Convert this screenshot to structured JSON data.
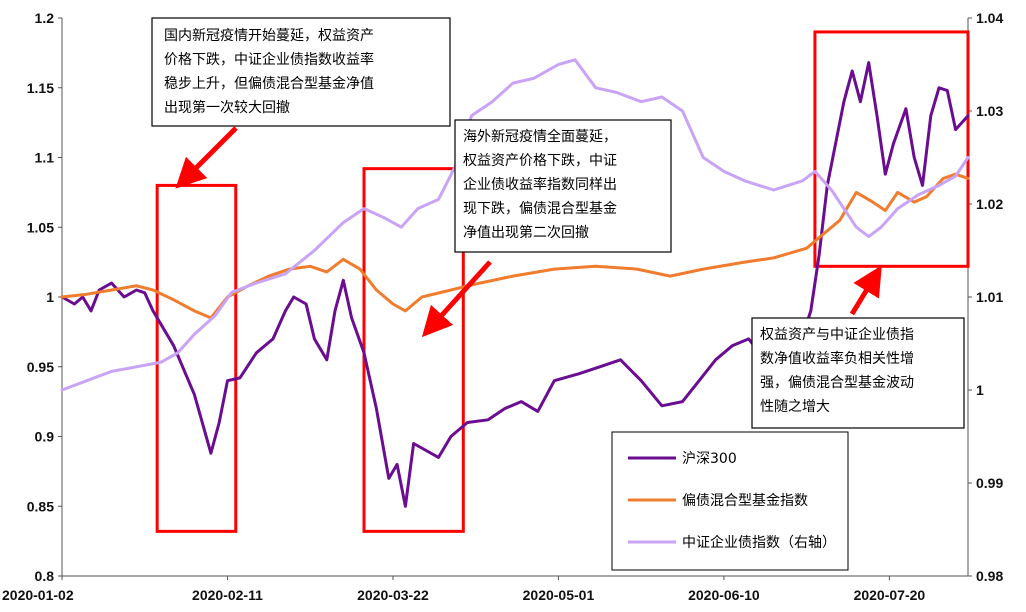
{
  "chart_data": {
    "type": "line",
    "title": "",
    "xlabel": "",
    "ylabel": "",
    "x_ticks": [
      "2020-01-02",
      "2020-02-11",
      "2020-03-22",
      "2020-05-01",
      "2020-06-10",
      "2020-07-20"
    ],
    "x_range": [
      "2020-01-02",
      "2020-08-08"
    ],
    "ylim_left": [
      0.8,
      1.2
    ],
    "ylim_right": [
      0.98,
      1.04
    ],
    "y_ticks_left": [
      "0.8",
      "0.85",
      "0.9",
      "0.95",
      "1",
      "1.05",
      "1.1",
      "1.15",
      "1.2"
    ],
    "y_ticks_right": [
      "0.98",
      "0.99",
      "1",
      "1.01",
      "1.02",
      "1.03",
      "1.04"
    ],
    "grid": false,
    "legend_position": "bottom-right",
    "series": [
      {
        "name": "沪深300",
        "axis": "left",
        "color": "#6a0d91",
        "points": [
          [
            "2020-01-02",
            1.0
          ],
          [
            "2020-01-05",
            0.995
          ],
          [
            "2020-01-07",
            1.0
          ],
          [
            "2020-01-09",
            0.99
          ],
          [
            "2020-01-11",
            1.005
          ],
          [
            "2020-01-14",
            1.01
          ],
          [
            "2020-01-17",
            1.0
          ],
          [
            "2020-01-20",
            1.005
          ],
          [
            "2020-01-22",
            1.003
          ],
          [
            "2020-01-24",
            0.99
          ],
          [
            "2020-01-29",
            0.965
          ],
          [
            "2020-02-03",
            0.93
          ],
          [
            "2020-02-07",
            0.888
          ],
          [
            "2020-02-09",
            0.91
          ],
          [
            "2020-02-11",
            0.94
          ],
          [
            "2020-02-14",
            0.942
          ],
          [
            "2020-02-18",
            0.96
          ],
          [
            "2020-02-22",
            0.97
          ],
          [
            "2020-02-25",
            0.99
          ],
          [
            "2020-02-27",
            1.0
          ],
          [
            "2020-03-01",
            0.995
          ],
          [
            "2020-03-03",
            0.97
          ],
          [
            "2020-03-06",
            0.955
          ],
          [
            "2020-03-08",
            0.99
          ],
          [
            "2020-03-10",
            1.012
          ],
          [
            "2020-03-12",
            0.985
          ],
          [
            "2020-03-15",
            0.96
          ],
          [
            "2020-03-18",
            0.92
          ],
          [
            "2020-03-21",
            0.87
          ],
          [
            "2020-03-23",
            0.88
          ],
          [
            "2020-03-25",
            0.85
          ],
          [
            "2020-03-27",
            0.895
          ],
          [
            "2020-03-30",
            0.89
          ],
          [
            "2020-04-02",
            0.885
          ],
          [
            "2020-04-05",
            0.9
          ],
          [
            "2020-04-09",
            0.91
          ],
          [
            "2020-04-14",
            0.912
          ],
          [
            "2020-04-18",
            0.92
          ],
          [
            "2020-04-22",
            0.925
          ],
          [
            "2020-04-26",
            0.918
          ],
          [
            "2020-04-30",
            0.94
          ],
          [
            "2020-05-06",
            0.945
          ],
          [
            "2020-05-11",
            0.95
          ],
          [
            "2020-05-16",
            0.955
          ],
          [
            "2020-05-21",
            0.94
          ],
          [
            "2020-05-26",
            0.922
          ],
          [
            "2020-05-31",
            0.925
          ],
          [
            "2020-06-04",
            0.94
          ],
          [
            "2020-06-08",
            0.955
          ],
          [
            "2020-06-12",
            0.965
          ],
          [
            "2020-06-16",
            0.97
          ],
          [
            "2020-06-20",
            0.955
          ],
          [
            "2020-06-25",
            0.965
          ],
          [
            "2020-06-29",
            0.972
          ],
          [
            "2020-07-01",
            0.99
          ],
          [
            "2020-07-03",
            1.03
          ],
          [
            "2020-07-05",
            1.08
          ],
          [
            "2020-07-07",
            1.11
          ],
          [
            "2020-07-09",
            1.14
          ],
          [
            "2020-07-11",
            1.162
          ],
          [
            "2020-07-13",
            1.14
          ],
          [
            "2020-07-15",
            1.168
          ],
          [
            "2020-07-17",
            1.13
          ],
          [
            "2020-07-19",
            1.088
          ],
          [
            "2020-07-21",
            1.11
          ],
          [
            "2020-07-24",
            1.135
          ],
          [
            "2020-07-26",
            1.1
          ],
          [
            "2020-07-28",
            1.08
          ],
          [
            "2020-07-30",
            1.13
          ],
          [
            "2020-08-01",
            1.15
          ],
          [
            "2020-08-03",
            1.148
          ],
          [
            "2020-08-05",
            1.12
          ],
          [
            "2020-08-08",
            1.13
          ]
        ]
      },
      {
        "name": "偏债混合型基金指数",
        "axis": "left",
        "color": "#f07c2e",
        "points": [
          [
            "2020-01-02",
            1.0
          ],
          [
            "2020-01-08",
            1.002
          ],
          [
            "2020-01-14",
            1.005
          ],
          [
            "2020-01-20",
            1.008
          ],
          [
            "2020-01-24",
            1.005
          ],
          [
            "2020-01-29",
            0.998
          ],
          [
            "2020-02-03",
            0.99
          ],
          [
            "2020-02-07",
            0.985
          ],
          [
            "2020-02-11",
            1.0
          ],
          [
            "2020-02-16",
            1.008
          ],
          [
            "2020-02-21",
            1.015
          ],
          [
            "2020-02-26",
            1.02
          ],
          [
            "2020-03-02",
            1.022
          ],
          [
            "2020-03-06",
            1.018
          ],
          [
            "2020-03-10",
            1.027
          ],
          [
            "2020-03-14",
            1.02
          ],
          [
            "2020-03-18",
            1.005
          ],
          [
            "2020-03-22",
            0.995
          ],
          [
            "2020-03-25",
            0.99
          ],
          [
            "2020-03-29",
            1.0
          ],
          [
            "2020-04-05",
            1.005
          ],
          [
            "2020-04-12",
            1.01
          ],
          [
            "2020-04-20",
            1.015
          ],
          [
            "2020-04-30",
            1.02
          ],
          [
            "2020-05-10",
            1.022
          ],
          [
            "2020-05-20",
            1.02
          ],
          [
            "2020-05-28",
            1.015
          ],
          [
            "2020-06-05",
            1.02
          ],
          [
            "2020-06-15",
            1.025
          ],
          [
            "2020-06-22",
            1.028
          ],
          [
            "2020-06-30",
            1.035
          ],
          [
            "2020-07-04",
            1.045
          ],
          [
            "2020-07-08",
            1.055
          ],
          [
            "2020-07-12",
            1.075
          ],
          [
            "2020-07-16",
            1.068
          ],
          [
            "2020-07-19",
            1.062
          ],
          [
            "2020-07-22",
            1.075
          ],
          [
            "2020-07-26",
            1.068
          ],
          [
            "2020-07-29",
            1.072
          ],
          [
            "2020-08-02",
            1.085
          ],
          [
            "2020-08-05",
            1.088
          ],
          [
            "2020-08-08",
            1.085
          ]
        ]
      },
      {
        "name": "中证企业债指数（右轴）",
        "axis": "right",
        "color": "#c9a3f5",
        "points": [
          [
            "2020-01-02",
            1.0
          ],
          [
            "2020-01-08",
            1.001
          ],
          [
            "2020-01-14",
            1.002
          ],
          [
            "2020-01-20",
            1.0025
          ],
          [
            "2020-01-26",
            1.003
          ],
          [
            "2020-01-30",
            1.004
          ],
          [
            "2020-02-03",
            1.006
          ],
          [
            "2020-02-08",
            1.008
          ],
          [
            "2020-02-12",
            1.0105
          ],
          [
            "2020-02-18",
            1.0115
          ],
          [
            "2020-02-25",
            1.0125
          ],
          [
            "2020-03-03",
            1.015
          ],
          [
            "2020-03-10",
            1.018
          ],
          [
            "2020-03-15",
            1.0195
          ],
          [
            "2020-03-20",
            1.0185
          ],
          [
            "2020-03-24",
            1.0175
          ],
          [
            "2020-03-28",
            1.0195
          ],
          [
            "2020-04-02",
            1.0205
          ],
          [
            "2020-04-06",
            1.024
          ],
          [
            "2020-04-10",
            1.0295
          ],
          [
            "2020-04-15",
            1.031
          ],
          [
            "2020-04-20",
            1.033
          ],
          [
            "2020-04-25",
            1.0335
          ],
          [
            "2020-05-01",
            1.035
          ],
          [
            "2020-05-05",
            1.0355
          ],
          [
            "2020-05-10",
            1.0325
          ],
          [
            "2020-05-15",
            1.032
          ],
          [
            "2020-05-21",
            1.031
          ],
          [
            "2020-05-26",
            1.0315
          ],
          [
            "2020-05-31",
            1.03
          ],
          [
            "2020-06-05",
            1.025
          ],
          [
            "2020-06-10",
            1.0235
          ],
          [
            "2020-06-15",
            1.0225
          ],
          [
            "2020-06-22",
            1.0215
          ],
          [
            "2020-06-29",
            1.0225
          ],
          [
            "2020-07-02",
            1.0235
          ],
          [
            "2020-07-06",
            1.0215
          ],
          [
            "2020-07-09",
            1.0195
          ],
          [
            "2020-07-12",
            1.0175
          ],
          [
            "2020-07-15",
            1.0165
          ],
          [
            "2020-07-18",
            1.0175
          ],
          [
            "2020-07-22",
            1.0195
          ],
          [
            "2020-07-27",
            1.021
          ],
          [
            "2020-08-01",
            1.022
          ],
          [
            "2020-08-05",
            1.023
          ],
          [
            "2020-08-08",
            1.025
          ]
        ]
      }
    ],
    "highlight_boxes": [
      {
        "x_start": "2020-01-25",
        "x_end": "2020-02-13",
        "y_top": 1.08,
        "y_bottom": 0.832,
        "color": "#ff0000"
      },
      {
        "x_start": "2020-03-15",
        "x_end": "2020-04-08",
        "y_top": 1.092,
        "y_bottom": 0.832,
        "color": "#ff0000"
      },
      {
        "x_start": "2020-07-02",
        "x_end": "2020-08-08",
        "y_top": 1.19,
        "y_bottom": 1.022,
        "color": "#ff0000"
      }
    ],
    "annotations": [
      {
        "lines": [
          "国内新冠疫情开始蔓延，权益资产",
          "价格下跌，中证企业债指数收益率",
          "稳步上升，但偏债混合型基金净值",
          "出现第一次较大回撤"
        ],
        "arrow_color": "#ff0000"
      },
      {
        "lines": [
          "海外新冠疫情全面蔓延，",
          "权益资产价格下跌，中证",
          "企业债收益率指数同样出",
          "现下跌，偏债混合型基金",
          "净值出现第二次回撤"
        ],
        "arrow_color": "#ff0000"
      },
      {
        "lines": [
          "权益资产与中证企业债指",
          "数净值收益率负相关性增",
          "强，偏债混合型基金波动",
          "性随之增大"
        ],
        "arrow_color": "#ff0000"
      }
    ]
  }
}
